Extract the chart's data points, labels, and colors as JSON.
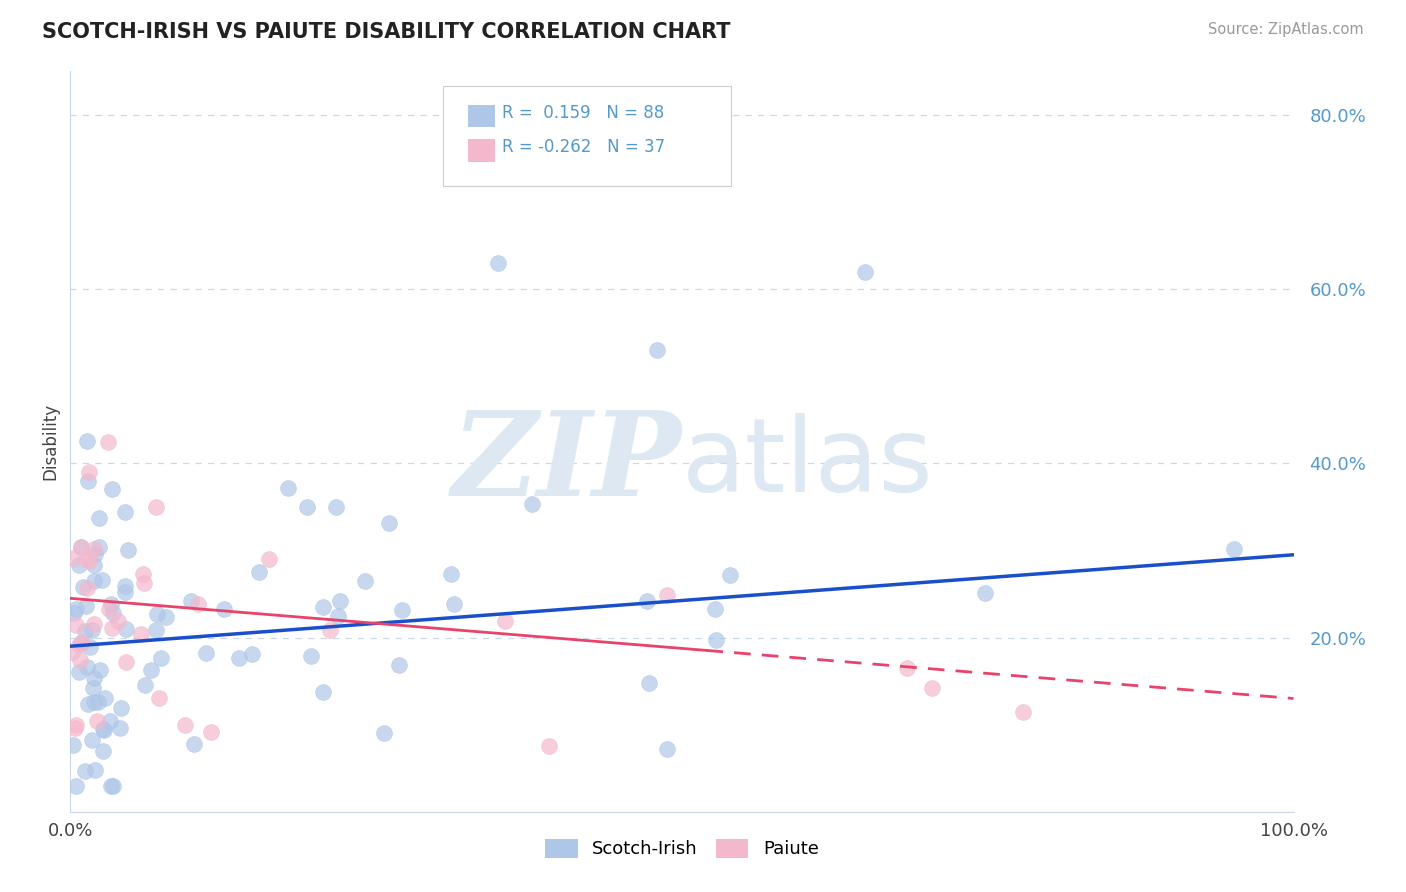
{
  "title": "SCOTCH-IRISH VS PAIUTE DISABILITY CORRELATION CHART",
  "source": "Source: ZipAtlas.com",
  "ylabel": "Disability",
  "r_blue": 0.159,
  "n_blue": 88,
  "r_pink": -0.262,
  "n_pink": 37,
  "blue_color": "#aec6e8",
  "pink_color": "#f4b8cc",
  "blue_line_color": "#1a4fcc",
  "pink_line_color": "#e8436a",
  "ylim": [
    0,
    85
  ],
  "xlim": [
    0,
    100
  ],
  "ytick_vals": [
    20,
    40,
    60,
    80
  ],
  "ytick_labels": [
    "20.0%",
    "40.0%",
    "60.0%",
    "80.0%"
  ],
  "background_color": "#ffffff",
  "grid_color": "#c8d8e8",
  "watermark_color": "#dde8f2",
  "tick_label_color": "#5599cc",
  "blue_y0": 19.0,
  "blue_slope": 0.105,
  "pink_y0": 24.5,
  "pink_slope": -0.115,
  "pink_solid_end": 52
}
